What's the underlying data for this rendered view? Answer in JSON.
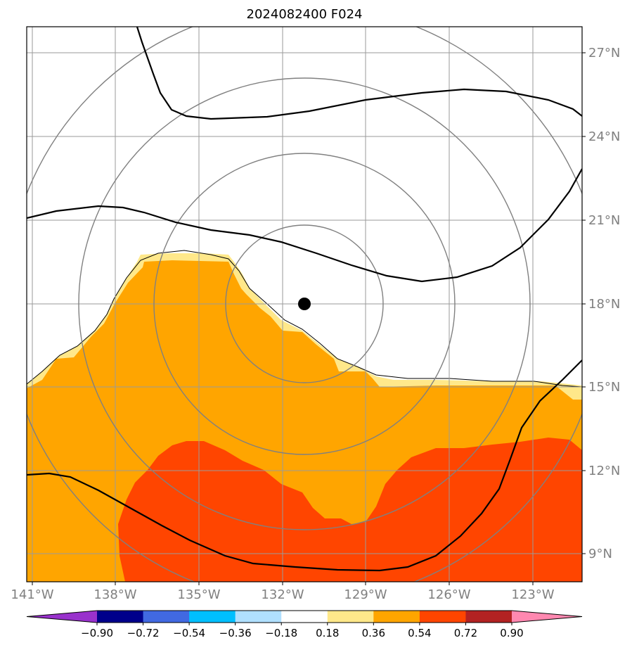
{
  "title": "2024082400 F024",
  "axes": {
    "lon_labels": [
      "141°W",
      "138°W",
      "135°W",
      "132°W",
      "129°W",
      "126°W",
      "123°W"
    ],
    "lat_labels": [
      "27°N",
      "24°N",
      "21°N",
      "18°N",
      "15°N",
      "12°N",
      "9°N"
    ]
  },
  "colorbar": {
    "tick_labels": [
      "−0.90",
      "−0.72",
      "−0.54",
      "−0.36",
      "−0.18",
      "0.18",
      "0.36",
      "0.54",
      "0.72",
      "0.90"
    ],
    "colors": [
      "#9932cc",
      "#00008b",
      "#4169e1",
      "#00bfff",
      "#b0e0ff",
      "#ffffff",
      "#ffe88a",
      "#ffa500",
      "#ff4500",
      "#b22222",
      "#ff88b0"
    ]
  },
  "fill_colors": {
    "band_018_036": "#ffe88a",
    "band_036_054": "#ffa500",
    "band_054_072": "#ff4500"
  },
  "center_marker": {
    "lon": -131.0,
    "lat": 18.0
  }
}
